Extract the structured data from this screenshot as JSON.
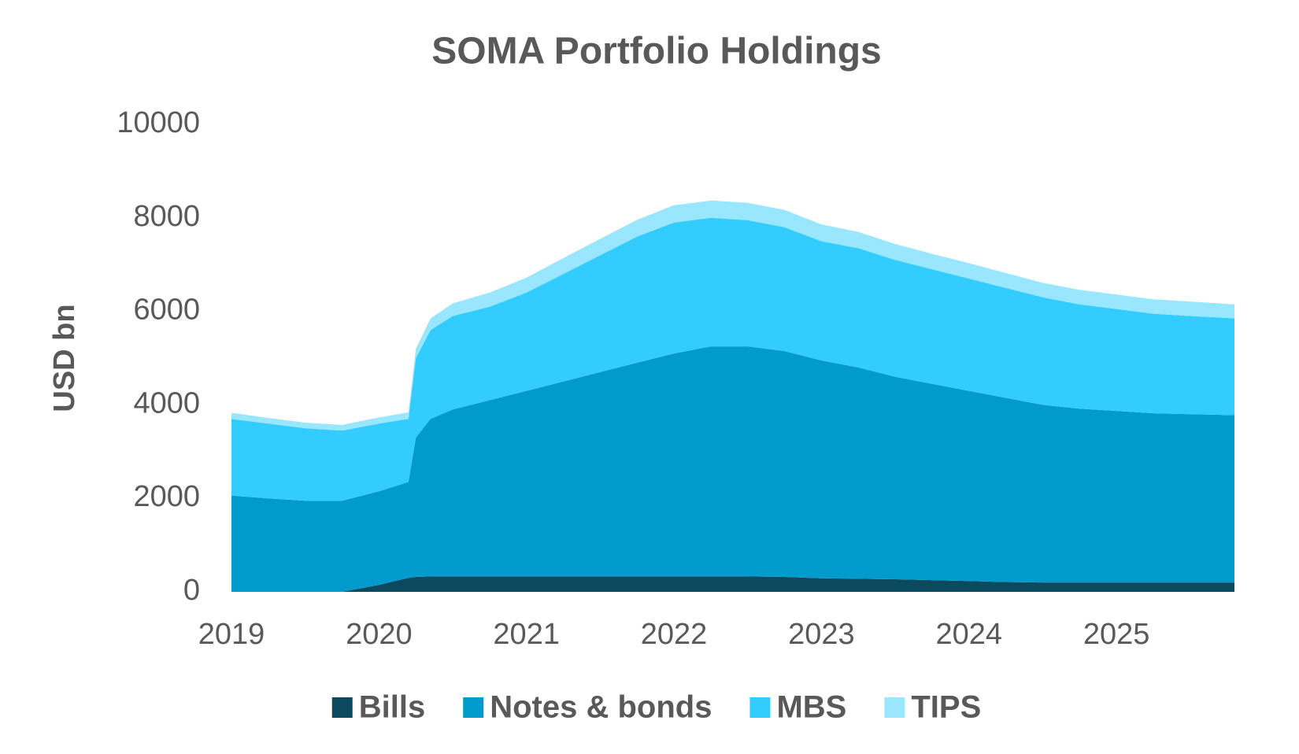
{
  "chart_data": {
    "type": "stacked-area",
    "title": "SOMA Portfolio Holdings",
    "y_label": "USD bn",
    "x": [
      2019,
      2019.25,
      2019.5,
      2019.75,
      2020,
      2020.2,
      2020.25,
      2020.35,
      2020.5,
      2020.75,
      2021,
      2021.25,
      2021.5,
      2021.75,
      2022,
      2022.25,
      2022.5,
      2022.75,
      2023,
      2023.25,
      2023.5,
      2023.75,
      2024,
      2024.25,
      2024.5,
      2024.75,
      2025,
      2025.25,
      2025.5,
      2025.8
    ],
    "series": [
      {
        "name": "Bills",
        "color": "#0b4a5e",
        "values": [
          0,
          0,
          0,
          0,
          150,
          300,
          320,
          330,
          330,
          330,
          330,
          330,
          330,
          330,
          330,
          330,
          330,
          320,
          290,
          280,
          270,
          250,
          230,
          210,
          200,
          200,
          200,
          200,
          200,
          200
        ]
      },
      {
        "name": "Notes & bonds",
        "color": "#009acd",
        "values": [
          2060,
          2000,
          1950,
          1950,
          2000,
          2050,
          2980,
          3370,
          3570,
          3770,
          3970,
          4170,
          4370,
          4570,
          4770,
          4920,
          4920,
          4830,
          4660,
          4520,
          4330,
          4200,
          4070,
          3940,
          3800,
          3720,
          3670,
          3620,
          3600,
          3580
        ]
      },
      {
        "name": "MBS",
        "color": "#33ccff",
        "values": [
          1640,
          1600,
          1550,
          1500,
          1450,
          1350,
          1700,
          1900,
          2000,
          2000,
          2100,
          2300,
          2500,
          2700,
          2800,
          2750,
          2700,
          2650,
          2550,
          2550,
          2500,
          2450,
          2400,
          2350,
          2300,
          2230,
          2180,
          2130,
          2100,
          2070
        ]
      },
      {
        "name": "TIPS",
        "color": "#99e6ff",
        "values": [
          130,
          120,
          120,
          120,
          130,
          140,
          200,
          250,
          270,
          300,
          320,
          340,
          350,
          360,
          370,
          370,
          370,
          370,
          360,
          350,
          340,
          330,
          330,
          320,
          310,
          310,
          310,
          310,
          310,
          300
        ]
      }
    ],
    "xlim": [
      2019,
      2025.8
    ],
    "xticks": [
      2019,
      2020,
      2021,
      2022,
      2023,
      2024,
      2025
    ],
    "ylim": [
      0,
      10000
    ],
    "yticks": [
      0,
      2000,
      4000,
      6000,
      8000,
      10000
    ],
    "grid": false,
    "legend": "bottom"
  }
}
